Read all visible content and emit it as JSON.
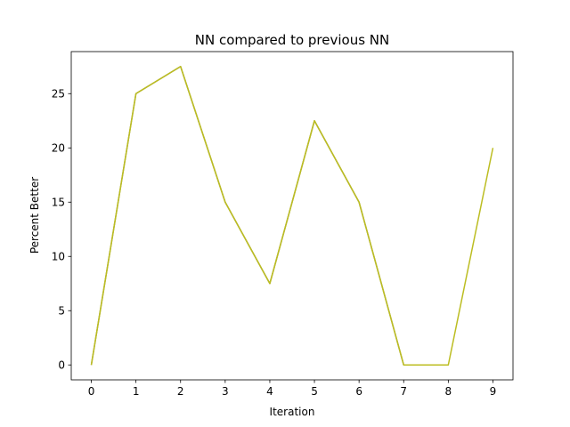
{
  "chart_data": {
    "type": "line",
    "title": "NN compared to previous NN",
    "xlabel": "Iteration",
    "ylabel": "Percent Better",
    "x": [
      0,
      1,
      2,
      3,
      4,
      5,
      6,
      7,
      8,
      9
    ],
    "x_ticks": [
      "0",
      "1",
      "2",
      "3",
      "4",
      "5",
      "6",
      "7",
      "8",
      "9"
    ],
    "y_ticks": [
      "0",
      "5",
      "10",
      "15",
      "20",
      "25"
    ],
    "xlim": [
      -0.45,
      9.45
    ],
    "ylim": [
      -1.375,
      28.875
    ],
    "grid": false,
    "series": [
      {
        "color": "#bcbd22",
        "values": [
          0,
          25,
          27.5,
          15,
          7.5,
          22.5,
          15,
          0,
          0,
          20
        ]
      },
      {
        "color": "#8c8c3a",
        "values": [
          0,
          25,
          27.5,
          15,
          7.5,
          22.5,
          15,
          0,
          0,
          null
        ]
      }
    ]
  }
}
